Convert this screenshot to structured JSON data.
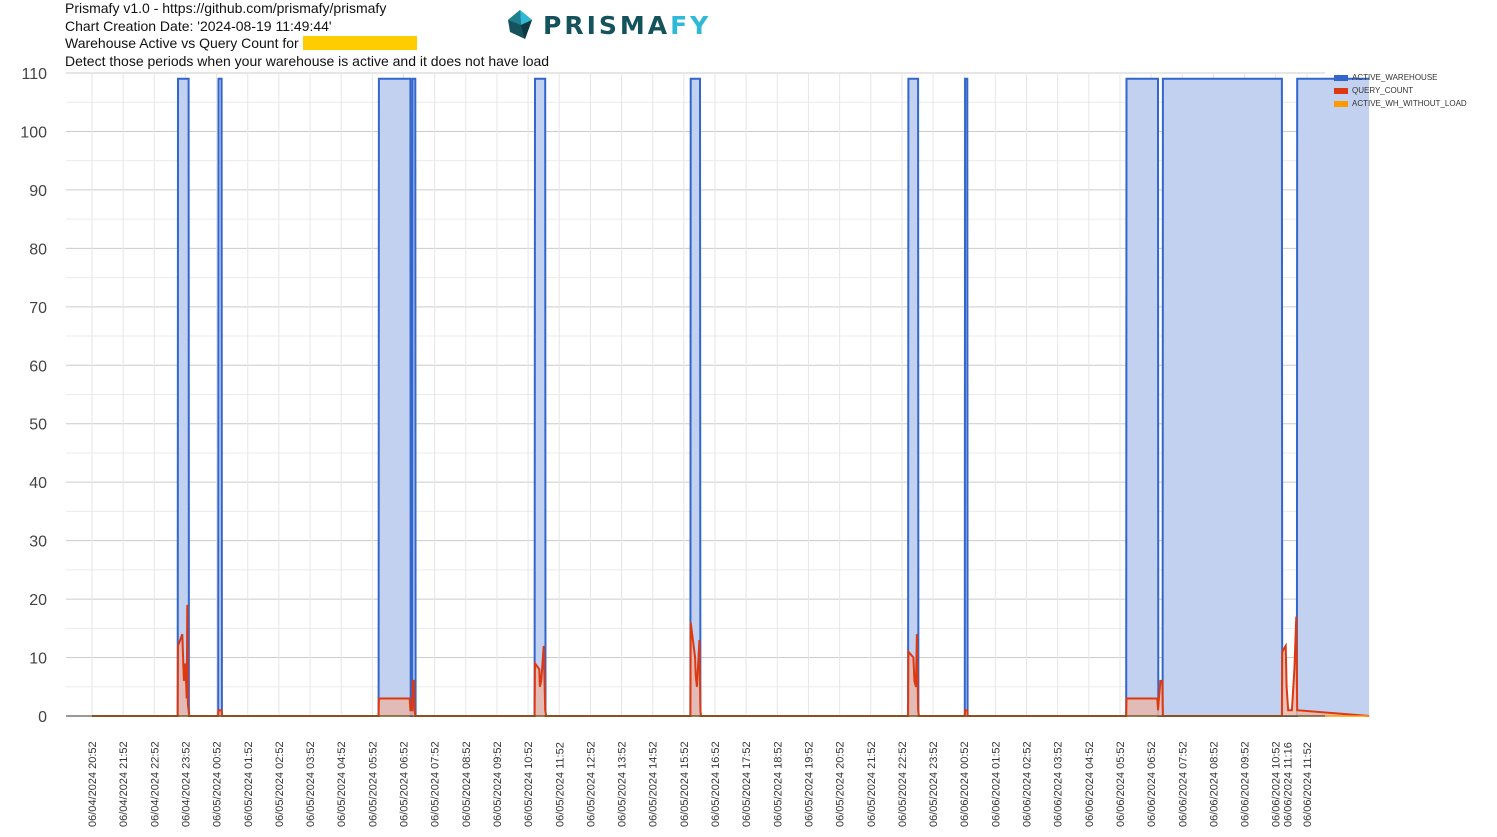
{
  "header": {
    "line1": "Prismafy v1.0 - https://github.com/prismafy/prismafy",
    "line2": "Chart Creation Date: '2024-08-19 11:49:44'",
    "line3_prefix": "Warehouse Active vs Query Count for",
    "line4": "Detect those periods when your warehouse is active and it does not have load"
  },
  "logo": {
    "text_main": "PRISMA",
    "text_accent": "FY"
  },
  "colors": {
    "active_warehouse": "#3366cc",
    "active_warehouse_fill": "#c3d1f0",
    "query_count": "#dc3912",
    "query_count_fill": "#e9b7ab",
    "active_wh_without_load": "#ff9900",
    "redaction": "#ffcc00"
  },
  "legend": {
    "position": "top-right",
    "items": [
      {
        "label": "ACTIVE_WAREHOUSE",
        "color": "#3366cc"
      },
      {
        "label": "QUERY_COUNT",
        "color": "#dc3912"
      },
      {
        "label": "ACTIVE_WH_WITHOUT_LOAD",
        "color": "#ff9900"
      }
    ]
  },
  "chart_data": {
    "type": "area",
    "title": "",
    "xlabel": "",
    "ylabel": "",
    "ylim": [
      0,
      110
    ],
    "y_ticks": [
      0,
      10,
      20,
      30,
      40,
      50,
      60,
      70,
      80,
      90,
      100,
      110
    ],
    "x_tick_labels": [
      "06/04/2024 20:52",
      "06/04/2024 21:52",
      "06/04/2024 22:52",
      "06/04/2024 23:52",
      "06/05/2024 00:52",
      "06/05/2024 01:52",
      "06/05/2024 02:52",
      "06/05/2024 03:52",
      "06/05/2024 04:52",
      "06/05/2024 05:52",
      "06/05/2024 06:52",
      "06/05/2024 07:52",
      "06/05/2024 08:52",
      "06/05/2024 09:52",
      "06/05/2024 10:52",
      "06/05/2024 11:52",
      "06/05/2024 12:52",
      "06/05/2024 13:52",
      "06/05/2024 14:52",
      "06/05/2024 15:52",
      "06/05/2024 16:52",
      "06/05/2024 17:52",
      "06/05/2024 18:52",
      "06/05/2024 19:52",
      "06/05/2024 20:52",
      "06/05/2024 21:52",
      "06/05/2024 22:52",
      "06/05/2024 23:52",
      "06/06/2024 00:52",
      "06/06/2024 01:52",
      "06/06/2024 02:52",
      "06/06/2024 03:52",
      "06/06/2024 04:52",
      "06/06/2024 05:52",
      "06/06/2024 06:52",
      "06/06/2024 07:52",
      "06/06/2024 08:52",
      "06/06/2024 09:52",
      "06/06/2024 10:52",
      "06/06/2024 11:16",
      "06/06/2024 11:52"
    ],
    "grid": true,
    "series": [
      {
        "name": "ACTIVE_WAREHOUSE",
        "x": [
          0,
          2.75,
          2.76,
          3.1,
          3.11,
          4.05,
          4.06,
          4.16,
          4.17,
          9.2,
          9.21,
          10.22,
          10.23,
          10.28,
          10.29,
          10.38,
          10.39,
          14.21,
          14.22,
          14.55,
          14.56,
          19.21,
          19.22,
          19.52,
          19.53,
          26.2,
          26.21,
          26.52,
          26.53,
          28.02,
          28.03,
          28.1,
          28.11,
          33.2,
          33.21,
          34.22,
          34.23,
          34.37,
          34.38,
          38.2,
          38.21,
          38.68,
          38.69,
          41
        ],
        "values": [
          0,
          0,
          109,
          109,
          0,
          0,
          109,
          109,
          0,
          0,
          109,
          109,
          0,
          0,
          109,
          109,
          0,
          0,
          109,
          109,
          0,
          0,
          109,
          109,
          0,
          0,
          109,
          109,
          0,
          0,
          109,
          109,
          0,
          0,
          109,
          109,
          0,
          0,
          109,
          109,
          0,
          0,
          109,
          109
        ]
      },
      {
        "name": "QUERY_COUNT",
        "x": [
          0,
          2.75,
          2.76,
          2.9,
          2.95,
          3.0,
          3.04,
          3.06,
          3.08,
          3.1,
          3.12,
          3.14,
          3.16,
          4.05,
          4.06,
          4.16,
          4.17,
          9.2,
          9.21,
          10.2,
          10.22,
          10.28,
          10.3,
          10.33,
          10.35,
          10.38,
          10.4,
          14.21,
          14.22,
          14.36,
          14.38,
          14.42,
          14.45,
          14.5,
          14.55,
          14.58,
          19.21,
          19.22,
          19.36,
          19.38,
          19.42,
          19.45,
          19.5,
          19.53,
          19.55,
          26.2,
          26.21,
          26.37,
          26.4,
          26.45,
          26.48,
          26.52,
          26.55,
          28.02,
          28.03,
          28.1,
          28.11,
          33.2,
          33.21,
          34.2,
          34.22,
          34.3,
          34.36,
          34.38,
          38.2,
          38.21,
          38.32,
          38.35,
          38.4,
          38.45,
          38.52,
          38.6,
          38.66,
          38.69,
          41
        ],
        "values": [
          0,
          0,
          12,
          14,
          6,
          9,
          3,
          19,
          2,
          1,
          0,
          0,
          0,
          0,
          1,
          1,
          0,
          0,
          3,
          3,
          1,
          1,
          6,
          6,
          1,
          0,
          0,
          0,
          9,
          8,
          5,
          6,
          8,
          12,
          1,
          0,
          0,
          16,
          10,
          7,
          5,
          8,
          13,
          1,
          0,
          0,
          11,
          10,
          6,
          5,
          14,
          1,
          0,
          0,
          1,
          1,
          0,
          0,
          3,
          3,
          1,
          6,
          6,
          0,
          0,
          11,
          12,
          5,
          1,
          1,
          1,
          8,
          17,
          1,
          0
        ]
      },
      {
        "name": "ACTIVE_WH_WITHOUT_LOAD",
        "x": [
          0,
          41
        ],
        "values": [
          0,
          0
        ]
      }
    ]
  }
}
